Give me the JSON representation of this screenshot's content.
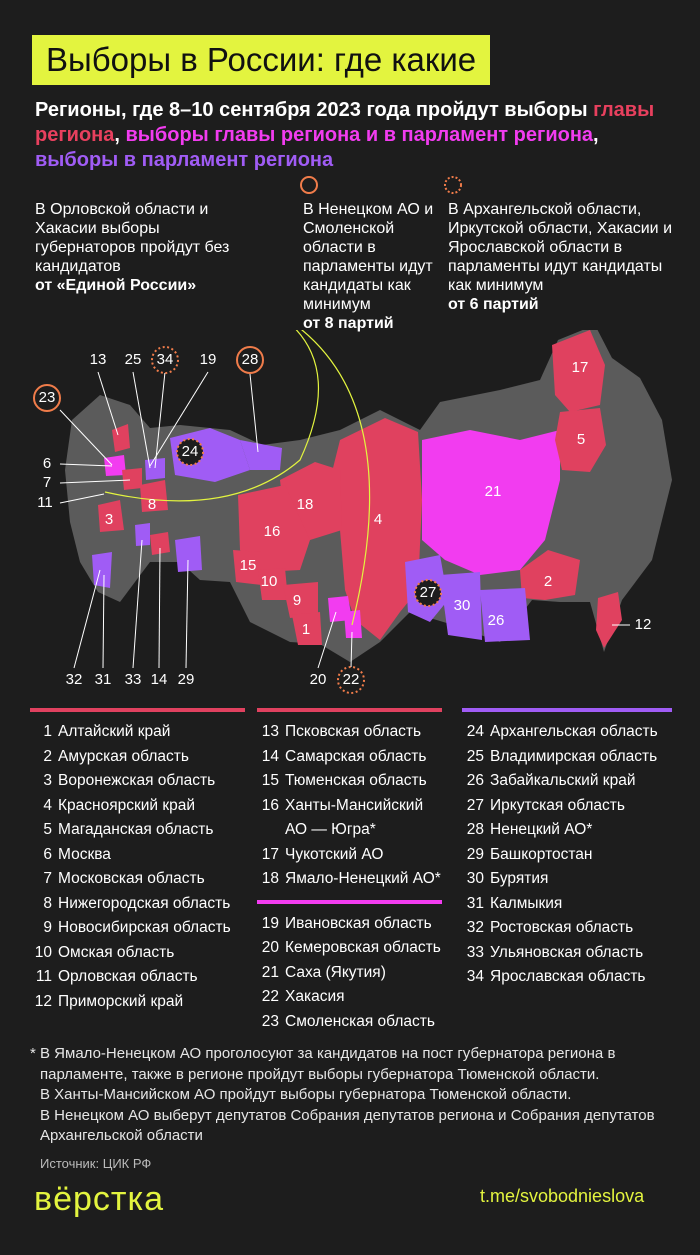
{
  "header": {
    "title": "Выборы в России: где какие",
    "subtitle": {
      "intro": "Регионы, где 8–10 сентября 2023 года пройдут выборы",
      "separator": ",",
      "parts": [
        {
          "text": "главы региона",
          "color": "#e8405e"
        },
        {
          "text": "выборы главы региона и в парламент региона",
          "color": "#f23cf0"
        },
        {
          "text": "выборы в парламент региона",
          "color": "#a05cf5"
        }
      ]
    }
  },
  "notes": [
    {
      "text": "В Орловской области и Хакасии выборы губернаторов пройдут без кандидатов",
      "bold": "от «Единой России»"
    },
    {
      "text": "В Ненецком АО и Смоленской области в парламенты идут кандидаты как минимум",
      "bold": "от 8 партий"
    },
    {
      "text": "В Архангельской области, Иркутской области, Хакасии и Ярославской области в парламенты идут кандидаты как минимум",
      "bold": "от 6 партий"
    }
  ],
  "map": {
    "labels": [
      "13",
      "25",
      "34",
      "19",
      "28",
      "23",
      "6",
      "7",
      "11",
      "3",
      "8",
      "24",
      "18",
      "16",
      "4",
      "21",
      "17",
      "5",
      "15",
      "10",
      "9",
      "1",
      "27",
      "30",
      "26",
      "2",
      "12",
      "32",
      "31",
      "33",
      "14",
      "29",
      "20",
      "22"
    ]
  },
  "legend": {
    "columns": [
      {
        "sections": [
          {
            "color": "#e0415f",
            "items": [
              {
                "number": 1,
                "name": "Алтайский край"
              },
              {
                "number": 2,
                "name": "Амурская область"
              },
              {
                "number": 3,
                "name": "Воронежская область"
              },
              {
                "number": 4,
                "name": "Красноярский край"
              },
              {
                "number": 5,
                "name": "Магаданская область"
              },
              {
                "number": 6,
                "name": "Москва"
              },
              {
                "number": 7,
                "name": "Московская область"
              },
              {
                "number": 8,
                "name": "Нижегородская область"
              },
              {
                "number": 9,
                "name": "Новосибирская область"
              },
              {
                "number": 10,
                "name": "Омская область"
              },
              {
                "number": 11,
                "name": "Орловская область"
              },
              {
                "number": 12,
                "name": "Приморский край"
              }
            ]
          }
        ]
      },
      {
        "sections": [
          {
            "color": "#e0415f",
            "items": [
              {
                "number": 13,
                "name": "Псковская область"
              },
              {
                "number": 14,
                "name": "Самарская область"
              },
              {
                "number": 15,
                "name": "Тюменская область"
              },
              {
                "number": 16,
                "name": "Ханты-Мансийский АО — Югра*"
              },
              {
                "number": 17,
                "name": "Чукотский АО"
              },
              {
                "number": 18,
                "name": "Ямало-Ненецкий АО*"
              }
            ]
          },
          {
            "color": "#f23cf0",
            "items": [
              {
                "number": 19,
                "name": "Ивановская область"
              },
              {
                "number": 20,
                "name": "Кемеровская область"
              },
              {
                "number": 21,
                "name": "Саха (Якутия)"
              },
              {
                "number": 22,
                "name": "Хакасия"
              },
              {
                "number": 23,
                "name": "Смоленская область"
              }
            ]
          }
        ]
      },
      {
        "sections": [
          {
            "color": "#a05cf5",
            "items": [
              {
                "number": 24,
                "name": "Архангельская область"
              },
              {
                "number": 25,
                "name": "Владимирская область"
              },
              {
                "number": 26,
                "name": "Забайкальский край"
              },
              {
                "number": 27,
                "name": "Иркутская область"
              },
              {
                "number": 28,
                "name": "Ненецкий АО*"
              },
              {
                "number": 29,
                "name": "Башкортостан"
              },
              {
                "number": 30,
                "name": "Бурятия"
              },
              {
                "number": 31,
                "name": "Калмыкия"
              },
              {
                "number": 32,
                "name": "Ростовская область"
              },
              {
                "number": 33,
                "name": "Ульяновская область"
              },
              {
                "number": 34,
                "name": "Ярославская область"
              }
            ]
          }
        ]
      }
    ]
  },
  "footnote": {
    "mark": "*",
    "paragraphs": [
      "В Ямало-Ненецком АО проголосуют за кандидатов на пост губернатора региона в парламенте, также в регионе пройдут выборы губернатора Тюменской области.",
      "В Ханты-Мансийском АО пройдут выборы губернатора Тюменской области.",
      "В Ненецком АО выберут депутатов Собрания депутатов региона и Собрания депутатов Архангельской области"
    ]
  },
  "source": "Источник: ЦИК РФ",
  "logo": "вёрстка",
  "link": "t.me/svobodnieslova"
}
